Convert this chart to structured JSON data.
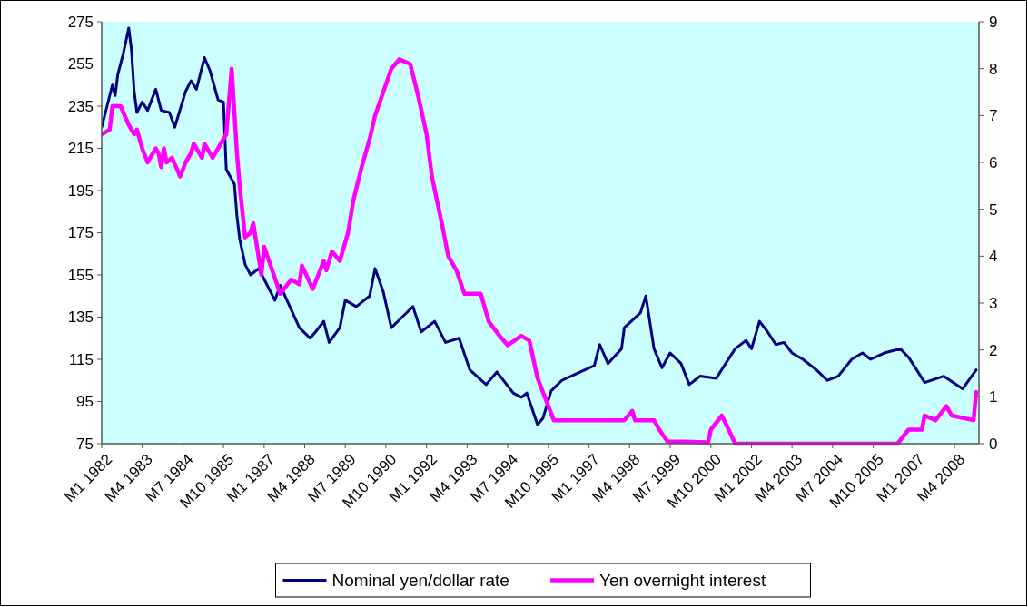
{
  "chart_data": {
    "type": "line",
    "xlim": [
      "1982-01",
      "2009-01"
    ],
    "ylim": [
      75,
      275
    ],
    "yticks": [
      75,
      95,
      115,
      135,
      155,
      175,
      195,
      215,
      235,
      255,
      275
    ],
    "y2lim": [
      0,
      9
    ],
    "y2ticks": [
      0,
      1,
      2,
      3,
      4,
      5,
      6,
      7,
      8,
      9
    ],
    "xticks": [
      {
        "value": "1982-01",
        "label": "M1 1982"
      },
      {
        "value": "1983-04",
        "label": "M4 1983"
      },
      {
        "value": "1984-07",
        "label": "M7 1984"
      },
      {
        "value": "1985-10",
        "label": "M10 1985"
      },
      {
        "value": "1987-01",
        "label": "M1 1987"
      },
      {
        "value": "1988-04",
        "label": "M4 1988"
      },
      {
        "value": "1989-07",
        "label": "M7 1989"
      },
      {
        "value": "1990-10",
        "label": "M10 1990"
      },
      {
        "value": "1992-01",
        "label": "M1 1992"
      },
      {
        "value": "1993-04",
        "label": "M4 1993"
      },
      {
        "value": "1994-07",
        "label": "M7 1994"
      },
      {
        "value": "1995-10",
        "label": "M10 1995"
      },
      {
        "value": "1997-01",
        "label": "M1 1997"
      },
      {
        "value": "1998-04",
        "label": "M4 1998"
      },
      {
        "value": "1999-07",
        "label": "M7 1999"
      },
      {
        "value": "2000-10",
        "label": "M10 2000"
      },
      {
        "value": "2002-01",
        "label": "M1 2002"
      },
      {
        "value": "2003-04",
        "label": "M4 2003"
      },
      {
        "value": "2004-07",
        "label": "M7 2004"
      },
      {
        "value": "2005-10",
        "label": "M10 2005"
      },
      {
        "value": "2007-01",
        "label": "M1 2007"
      },
      {
        "value": "2008-04",
        "label": "M4 2008"
      }
    ],
    "grid": false,
    "legend": "bottom",
    "marker": "none",
    "line_style": "solid",
    "series": [
      {
        "name": "Nominal yen/dollar rate",
        "color": "#000080",
        "x": [
          "1982-01",
          "1982-05",
          "1982-06",
          "1982-07",
          "1982-09",
          "1982-11",
          "1982-12",
          "1983-01",
          "1983-02",
          "1983-04",
          "1983-06",
          "1983-09",
          "1983-11",
          "1984-02",
          "1984-04",
          "1984-08",
          "1984-10",
          "1984-12",
          "1985-03",
          "1985-05",
          "1985-08",
          "1985-10",
          "1985-11",
          "1986-02",
          "1986-03",
          "1986-04",
          "1986-06",
          "1986-08",
          "1986-11",
          "1987-05",
          "1987-07",
          "1988-02",
          "1988-06",
          "1988-08",
          "1988-11",
          "1989-01",
          "1989-05",
          "1989-07",
          "1989-11",
          "1990-04",
          "1990-06",
          "1990-09",
          "1990-12",
          "1991-04",
          "1991-08",
          "1991-11",
          "1992-04",
          "1992-08",
          "1993-01",
          "1993-05",
          "1993-11",
          "1994-03",
          "1994-09",
          "1994-12",
          "1995-02",
          "1995-06",
          "1995-08",
          "1995-11",
          "1996-03",
          "1996-08",
          "1997-03",
          "1997-05",
          "1997-08",
          "1998-01",
          "1998-02",
          "1998-08",
          "1998-10",
          "1999-01",
          "1999-04",
          "1999-07",
          "1999-11",
          "2000-02",
          "2000-06",
          "2000-12",
          "2001-03",
          "2001-07",
          "2001-11",
          "2002-01",
          "2002-04",
          "2002-07",
          "2002-10",
          "2003-01",
          "2003-04",
          "2003-08",
          "2004-01",
          "2004-05",
          "2004-09",
          "2005-02",
          "2005-06",
          "2005-09",
          "2006-02",
          "2006-08",
          "2006-11",
          "2007-02",
          "2007-05",
          "2007-12",
          "2008-07",
          "2008-12"
        ],
        "values": [
          225,
          245,
          240,
          250,
          260,
          272,
          262,
          242,
          232,
          237,
          233,
          243,
          233,
          232,
          225,
          242,
          247,
          243,
          258,
          252,
          238,
          237,
          205,
          198,
          183,
          172,
          160,
          155,
          158,
          143,
          150,
          130,
          125,
          128,
          133,
          123,
          130,
          143,
          140,
          145,
          158,
          147,
          130,
          135,
          140,
          128,
          133,
          123,
          125,
          110,
          103,
          109,
          99,
          97,
          99,
          84,
          87,
          100,
          105,
          108,
          112,
          122,
          113,
          120,
          130,
          137,
          145,
          120,
          111,
          118,
          113,
          103,
          107,
          106,
          112,
          120,
          124,
          120,
          133,
          128,
          122,
          123,
          118,
          115,
          110,
          105,
          107,
          115,
          118,
          115,
          118,
          120,
          116,
          110,
          104,
          107,
          101,
          110
        ]
      },
      {
        "name": "Yen overnight interest",
        "color": "#ff00ff",
        "axis": "y2",
        "x": [
          "1982-01",
          "1982-04",
          "1982-05",
          "1982-08",
          "1982-11",
          "1983-01",
          "1983-02",
          "1983-04",
          "1983-06",
          "1983-07",
          "1983-09",
          "1983-10",
          "1983-11",
          "1983-12",
          "1984-01",
          "1984-03",
          "1984-06",
          "1984-08",
          "1984-10",
          "1984-11",
          "1985-02",
          "1985-03",
          "1985-06",
          "1985-08",
          "1985-11",
          "1986-01",
          "1986-03",
          "1986-04",
          "1986-06",
          "1986-08",
          "1986-09",
          "1986-12",
          "1987-01",
          "1987-04",
          "1987-07",
          "1987-11",
          "1988-02",
          "1988-03",
          "1988-07",
          "1988-11",
          "1988-12",
          "1989-02",
          "1989-05",
          "1989-08",
          "1989-10",
          "1990-01",
          "1990-04",
          "1990-06",
          "1990-09",
          "1990-12",
          "1991-03",
          "1991-07",
          "1991-10",
          "1992-01",
          "1992-03",
          "1992-07",
          "1992-09",
          "1992-12",
          "1993-03",
          "1993-09",
          "1993-12",
          "1994-04",
          "1994-07",
          "1994-12",
          "1995-03",
          "1995-06",
          "1995-12",
          "1996-10",
          "1997-04",
          "1998-02",
          "1998-05",
          "1998-06",
          "1999-01",
          "1999-03",
          "1999-06",
          "2000-09",
          "2000-10",
          "2001-02",
          "2001-05",
          "2001-07",
          "2006-07",
          "2006-11",
          "2007-04",
          "2007-05",
          "2007-09",
          "2008-01",
          "2008-03",
          "2008-11",
          "2008-12"
        ],
        "values": [
          6.6,
          6.7,
          7.2,
          7.2,
          6.8,
          6.6,
          6.7,
          6.3,
          6.0,
          6.1,
          6.3,
          6.2,
          5.9,
          6.3,
          6.0,
          6.1,
          5.7,
          6.0,
          6.2,
          6.4,
          6.1,
          6.4,
          6.1,
          6.3,
          6.6,
          8.0,
          6.2,
          5.5,
          4.4,
          4.5,
          4.7,
          3.6,
          4.2,
          3.7,
          3.2,
          3.5,
          3.4,
          3.8,
          3.3,
          3.9,
          3.7,
          4.1,
          3.9,
          4.5,
          5.2,
          5.9,
          6.5,
          7.0,
          7.5,
          8.0,
          8.2,
          8.1,
          7.4,
          6.6,
          5.7,
          4.6,
          4.0,
          3.7,
          3.2,
          3.2,
          2.6,
          2.3,
          2.1,
          2.3,
          2.2,
          1.4,
          0.5,
          0.5,
          0.5,
          0.5,
          0.7,
          0.5,
          0.5,
          0.3,
          0.05,
          0.03,
          0.3,
          0.6,
          0.25,
          0.0,
          0.0,
          0.3,
          0.3,
          0.6,
          0.5,
          0.8,
          0.6,
          0.5,
          1.1
        ]
      }
    ]
  }
}
